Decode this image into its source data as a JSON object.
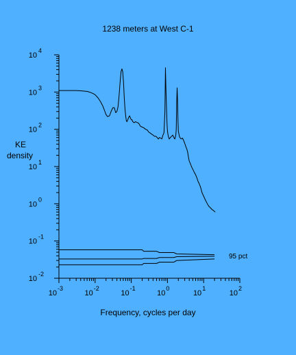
{
  "chart_data": {
    "type": "line",
    "title": "1238 meters at West C-1",
    "xlabel": "Frequency, cycles per day",
    "ylabel_lines": [
      "KE",
      "density"
    ],
    "x_scale": "log",
    "y_scale": "log",
    "xlim": [
      0.001,
      100
    ],
    "ylim": [
      0.01,
      10000
    ],
    "x_ticks": [
      {
        "base": "10",
        "exp": "-3",
        "value": 0.001
      },
      {
        "base": "10",
        "exp": "-2",
        "value": 0.01
      },
      {
        "base": "10",
        "exp": "-1",
        "value": 0.1
      },
      {
        "base": "10",
        "exp": "0",
        "value": 1
      },
      {
        "base": "10",
        "exp": "1",
        "value": 10
      },
      {
        "base": "10",
        "exp": "2",
        "value": 100
      }
    ],
    "y_ticks": [
      {
        "base": "10",
        "exp": "-2",
        "value": 0.01
      },
      {
        "base": "10",
        "exp": "-1",
        "value": 0.1
      },
      {
        "base": "10",
        "exp": "0",
        "value": 1
      },
      {
        "base": "10",
        "exp": "1",
        "value": 10
      },
      {
        "base": "10",
        "exp": "2",
        "value": 100
      },
      {
        "base": "10",
        "exp": "3",
        "value": 1000
      },
      {
        "base": "10",
        "exp": "4",
        "value": 10000
      }
    ],
    "grid": false,
    "annotation": "95 pct",
    "series": [
      {
        "role": "spectrum",
        "x": [
          0.001,
          0.0015,
          0.002,
          0.003,
          0.004,
          0.005,
          0.006,
          0.007,
          0.008,
          0.009,
          0.01,
          0.012,
          0.014,
          0.016,
          0.018,
          0.02,
          0.022,
          0.025,
          0.028,
          0.031,
          0.034,
          0.037,
          0.04,
          0.043,
          0.046,
          0.049,
          0.052,
          0.055,
          0.058,
          0.061,
          0.064,
          0.067,
          0.07,
          0.073,
          0.076,
          0.08,
          0.085,
          0.09,
          0.095,
          0.1,
          0.105,
          0.11,
          0.12,
          0.13,
          0.14,
          0.15,
          0.16,
          0.18,
          0.2,
          0.22,
          0.25,
          0.28,
          0.3,
          0.33,
          0.36,
          0.4,
          0.44,
          0.48,
          0.52,
          0.56,
          0.6,
          0.65,
          0.7,
          0.75,
          0.8,
          0.85,
          0.88,
          0.91,
          0.94,
          0.97,
          1.0,
          1.04,
          1.08,
          1.12,
          1.2,
          1.3,
          1.4,
          1.5,
          1.6,
          1.7,
          1.75,
          1.8,
          1.85,
          1.9,
          1.95,
          2.0,
          2.1,
          2.2,
          2.4,
          2.6,
          2.8,
          3.0,
          3.2,
          3.4,
          3.6,
          3.8,
          4.0,
          4.3,
          4.6,
          5.0,
          5.5,
          6.0,
          6.5,
          7.0,
          7.5,
          8.0,
          8.5,
          9.0,
          10.0,
          11.0,
          12.0,
          13.0,
          14.0,
          15.0,
          16.0,
          17.0,
          18.0,
          19.0,
          20.0,
          21.0
        ],
        "values": [
          1100,
          1100,
          1100,
          1100,
          1080,
          1060,
          1040,
          1000,
          950,
          900,
          850,
          700,
          560,
          440,
          330,
          250,
          220,
          230,
          310,
          380,
          380,
          280,
          300,
          400,
          800,
          1800,
          3500,
          4200,
          3500,
          1800,
          700,
          350,
          230,
          170,
          160,
          180,
          210,
          230,
          200,
          180,
          180,
          160,
          150,
          160,
          155,
          150,
          145,
          120,
          115,
          110,
          100,
          95,
          85,
          80,
          75,
          70,
          65,
          65,
          60,
          55,
          60,
          58,
          55,
          70,
          80,
          300,
          4500,
          1100,
          400,
          150,
          90,
          70,
          60,
          55,
          60,
          65,
          70,
          60,
          55,
          70,
          100,
          500,
          1300,
          600,
          180,
          90,
          70,
          60,
          55,
          58,
          50,
          42,
          35,
          30,
          25,
          18,
          14,
          12,
          10,
          8.5,
          7,
          6,
          5,
          4,
          3.5,
          3,
          2.5,
          2,
          1.6,
          1.3,
          1.1,
          0.95,
          0.85,
          0.8,
          0.75,
          0.7,
          0.68,
          0.65,
          0.62,
          0.6
        ]
      },
      {
        "role": "confidence-upper",
        "x": [
          0.001,
          0.2,
          0.22,
          0.5,
          0.6,
          1.5,
          1.8,
          20
        ],
        "values": [
          0.058,
          0.058,
          0.053,
          0.053,
          0.049,
          0.049,
          0.045,
          0.043
        ]
      },
      {
        "role": "confidence-mid",
        "x": [
          0.001,
          0.2,
          0.22,
          0.5,
          0.6,
          1.5,
          1.8,
          20
        ],
        "values": [
          0.033,
          0.033,
          0.034,
          0.034,
          0.036,
          0.036,
          0.038,
          0.039
        ]
      },
      {
        "role": "confidence-lower",
        "x": [
          0.001,
          0.2,
          0.22,
          0.5,
          0.6,
          1.5,
          1.8,
          20
        ],
        "values": [
          0.023,
          0.023,
          0.025,
          0.025,
          0.027,
          0.027,
          0.03,
          0.033
        ]
      }
    ]
  }
}
